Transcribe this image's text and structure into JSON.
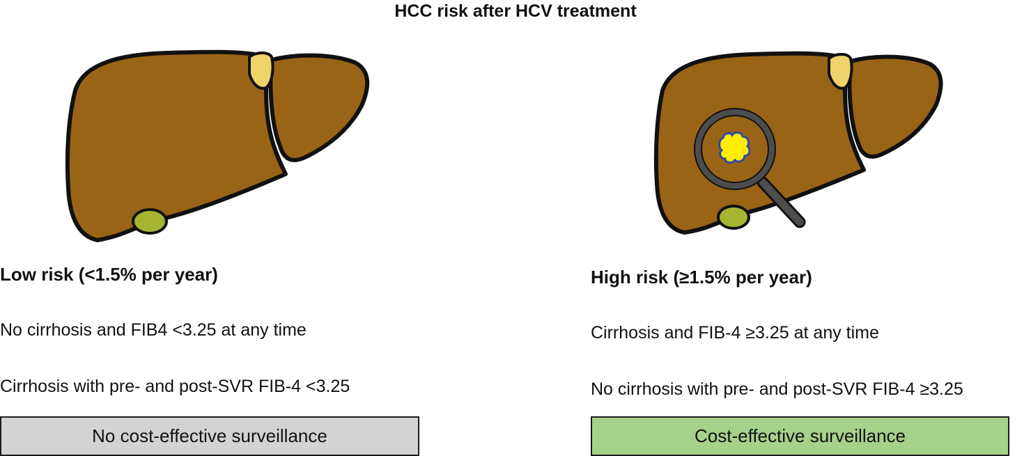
{
  "title": "HCC risk after HCV treatment",
  "colors": {
    "liver": "#9a6416",
    "outline": "#111111",
    "gallbladder": "#a6b531",
    "ligament": "#f1d36b",
    "tumor": "#ffee00",
    "tumor_outline": "#2b4aa8",
    "magnifier": "#4d4d4d",
    "low_box": "#d3d3d3",
    "high_box": "#a6d18a"
  },
  "low": {
    "heading": "Low risk (<1.5% per year)",
    "criteria": [
      "No cirrhosis and FIB4 <3.25 at any time",
      "Cirrhosis with pre- and post-SVR FIB-4 <3.25"
    ],
    "recommendation": "No cost-effective surveillance"
  },
  "high": {
    "heading": "High risk (≥1.5% per year)",
    "criteria": [
      "Cirrhosis and FIB-4 ≥3.25 at any time",
      "No cirrhosis with pre- and post-SVR FIB-4 ≥3.25"
    ],
    "recommendation": "Cost-effective surveillance"
  }
}
